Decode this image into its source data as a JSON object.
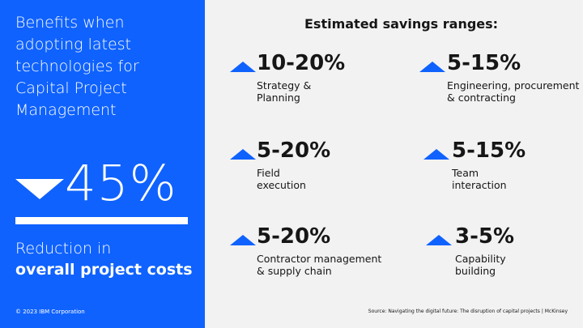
{
  "left_panel": {
    "title": "Benefits when\nadopting latest\ntechnologies for\nCapital Project\nManagement",
    "big_value": "45%",
    "reduction_line1": "Reduction in",
    "reduction_line2": "overall project costs",
    "copyright": "© 2023 IBM Corporation"
  },
  "right_panel": {
    "heading": "Estimated savings ranges:",
    "items": [
      {
        "value": "10-20%",
        "label": "Strategy &\nPlanning"
      },
      {
        "value": "5-15%",
        "label": "Engineering, procurement\n& contracting"
      },
      {
        "value": "5-20%",
        "label": "Field\nexecution"
      },
      {
        "value": "5-15%",
        "label": "Team\ninteraction"
      },
      {
        "value": "5-20%",
        "label": "Contractor management\n& supply chain"
      },
      {
        "value": "3-5%",
        "label": "Capability\nbuilding"
      }
    ],
    "source": "Source: Navigating the digital future: The disruption of capital projects | McKinsey"
  },
  "colors": {
    "accent": "#0f62fe",
    "panel_bg": "#f2f2f2",
    "text": "#161616"
  },
  "icons": {
    "decrease": "down-triangle-icon",
    "increase": "up-triangle-icon"
  }
}
